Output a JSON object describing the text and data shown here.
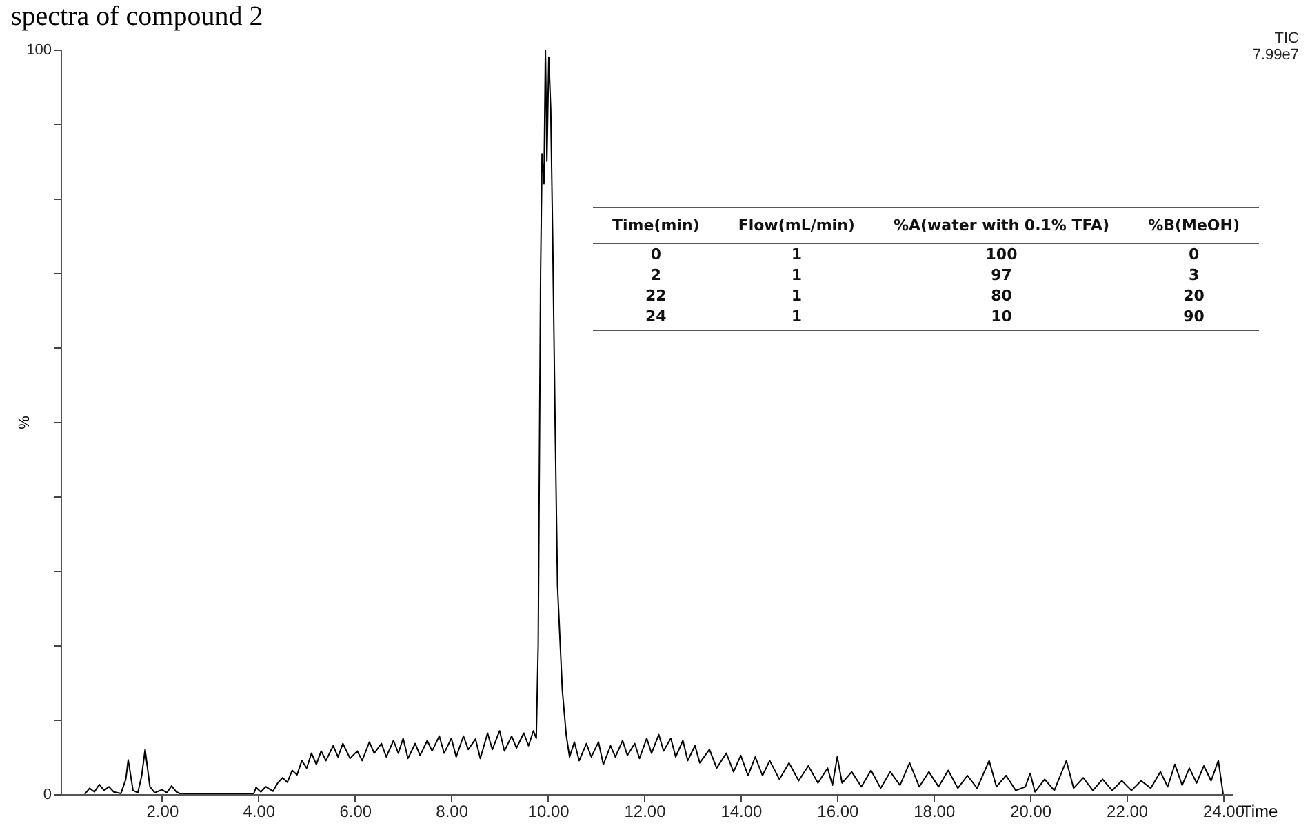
{
  "chart_data": {
    "type": "line",
    "title": "spectra of compound 2",
    "xlabel": "Time",
    "ylabel": "%",
    "annotations": [
      "TIC",
      "7.99e7",
      "Time(min)",
      "Flow(mL/min)",
      "%A(water with 0.1% TFA)",
      "%B(MeOH)",
      "0",
      "1",
      "100",
      "0",
      "2",
      "1",
      "97",
      "3",
      "22",
      "1",
      "80",
      "20",
      "24",
      "1",
      "10",
      "90"
    ],
    "x": [
      0.4,
      0.5,
      0.6,
      0.7,
      0.8,
      0.9,
      1.0,
      1.15,
      1.25,
      1.3,
      1.4,
      1.5,
      1.58,
      1.65,
      1.75,
      1.85,
      2.0,
      2.1,
      2.2,
      2.3,
      2.4,
      3.9,
      3.95,
      4.05,
      4.15,
      4.3,
      4.4,
      4.5,
      4.6,
      4.7,
      4.8,
      4.9,
      5.0,
      5.1,
      5.2,
      5.3,
      5.4,
      5.55,
      5.65,
      5.75,
      5.9,
      6.05,
      6.15,
      6.3,
      6.4,
      6.55,
      6.65,
      6.8,
      6.9,
      7.0,
      7.1,
      7.25,
      7.35,
      7.5,
      7.6,
      7.75,
      7.85,
      8.0,
      8.1,
      8.25,
      8.35,
      8.5,
      8.6,
      8.75,
      8.85,
      9.0,
      9.1,
      9.25,
      9.35,
      9.5,
      9.6,
      9.7,
      9.76,
      9.8,
      9.85,
      9.88,
      9.92,
      9.95,
      9.98,
      10.02,
      10.06,
      10.1,
      10.15,
      10.2,
      10.3,
      10.38,
      10.45,
      10.55,
      10.65,
      10.8,
      10.9,
      11.05,
      11.15,
      11.3,
      11.4,
      11.55,
      11.65,
      11.8,
      11.9,
      12.05,
      12.15,
      12.3,
      12.4,
      12.55,
      12.65,
      12.8,
      12.9,
      13.05,
      13.15,
      13.35,
      13.5,
      13.7,
      13.85,
      14.0,
      14.15,
      14.3,
      14.45,
      14.6,
      14.8,
      15.0,
      15.2,
      15.4,
      15.6,
      15.8,
      15.9,
      16.0,
      16.1,
      16.3,
      16.5,
      16.7,
      16.9,
      17.1,
      17.3,
      17.5,
      17.7,
      17.9,
      18.1,
      18.3,
      18.5,
      18.7,
      18.9,
      19.15,
      19.3,
      19.5,
      19.7,
      19.9,
      20.0,
      20.1,
      20.3,
      20.5,
      20.75,
      20.9,
      21.1,
      21.3,
      21.5,
      21.7,
      21.9,
      22.1,
      22.3,
      22.5,
      22.7,
      22.85,
      23.0,
      23.15,
      23.3,
      23.45,
      23.6,
      23.75,
      23.9,
      24.0
    ],
    "series": [
      {
        "color": "#000000",
        "values": [
          0,
          0.8,
          0.3,
          1.3,
          0.5,
          1.0,
          0.3,
          0.1,
          2,
          4.6,
          0.5,
          0.2,
          2.5,
          6.0,
          1.0,
          0.2,
          0.6,
          0.2,
          1.1,
          0.3,
          0,
          0,
          0.9,
          0.3,
          1.0,
          0.4,
          1.5,
          2.2,
          1.6,
          3.2,
          2.6,
          4.5,
          3.5,
          5.5,
          4.0,
          5.8,
          4.5,
          6.5,
          5.0,
          6.8,
          4.8,
          5.8,
          4.5,
          7.0,
          5.5,
          6.8,
          5.0,
          7.2,
          5.5,
          7.5,
          4.8,
          6.8,
          5.2,
          7.2,
          5.8,
          7.8,
          5.5,
          7.5,
          5.0,
          7.8,
          6.0,
          7.4,
          4.8,
          8.2,
          6.0,
          8.5,
          5.8,
          7.8,
          6.2,
          8.2,
          6.5,
          8.5,
          7.5,
          20,
          70,
          86,
          82,
          100,
          85,
          99,
          92,
          75,
          50,
          28,
          14,
          8,
          5.0,
          7.0,
          4.5,
          6.8,
          5.0,
          7.0,
          4.0,
          6.5,
          5.0,
          7.2,
          5.2,
          6.8,
          4.8,
          7.5,
          5.5,
          8.0,
          5.8,
          7.5,
          5.0,
          7.2,
          4.5,
          6.5,
          4.2,
          6.0,
          3.5,
          5.5,
          3.0,
          5.2,
          2.5,
          5.0,
          2.5,
          4.5,
          2.0,
          4.2,
          1.8,
          3.8,
          1.5,
          3.5,
          1.2,
          5.0,
          1.5,
          3.0,
          1.0,
          3.2,
          0.8,
          3.0,
          1.2,
          4.2,
          1.0,
          3.0,
          1.0,
          3.2,
          0.8,
          2.5,
          0.8,
          4.5,
          1.0,
          2.5,
          0.5,
          1.0,
          2.8,
          0.3,
          2.0,
          0.5,
          4.5,
          0.8,
          2.2,
          0.5,
          2.0,
          0.5,
          1.8,
          0.5,
          1.8,
          0.8,
          3.0,
          1.0,
          4.0,
          1.2,
          3.5,
          1.5,
          3.8,
          1.8,
          4.5,
          0
        ]
      }
    ],
    "xlim": [
      -0.1,
      24.2
    ],
    "ylim": [
      0,
      100
    ],
    "xticks": [
      {
        "value": 2,
        "label": "2.00"
      },
      {
        "value": 4,
        "label": "4.00"
      },
      {
        "value": 6,
        "label": "6.00"
      },
      {
        "value": 8,
        "label": "8.00"
      },
      {
        "value": 10,
        "label": "10.00"
      },
      {
        "value": 12,
        "label": "12.00"
      },
      {
        "value": 14,
        "label": "14.00"
      },
      {
        "value": 16,
        "label": "16.00"
      },
      {
        "value": 18,
        "label": "18.00"
      },
      {
        "value": 20,
        "label": "20.00"
      },
      {
        "value": 22,
        "label": "22.00"
      },
      {
        "value": 24,
        "label": "24.00"
      }
    ],
    "yticks": [
      0,
      {
        "value": 10,
        "label": null
      },
      {
        "value": 20,
        "label": null
      },
      {
        "value": 30,
        "label": null
      },
      {
        "value": 40,
        "label": null
      },
      {
        "value": 50,
        "label": null
      },
      {
        "value": 60,
        "label": null
      },
      {
        "value": 70,
        "label": null
      },
      {
        "value": 80,
        "label": null
      },
      {
        "value": 90,
        "label": null
      },
      100
    ],
    "grid": false
  }
}
